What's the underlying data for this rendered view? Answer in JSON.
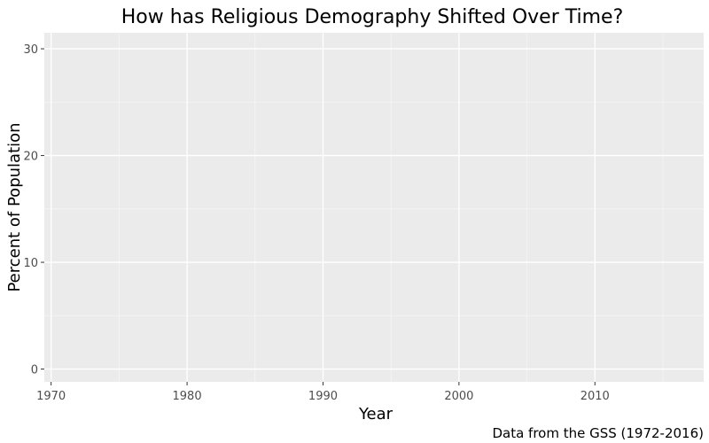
{
  "chart_data": {
    "type": "line",
    "title": "How has Religious Demography Shifted Over Time?",
    "xlabel": "Year",
    "ylabel": "Percent of Population",
    "caption": "Data from the GSS (1972-2016)",
    "xlim": [
      1969.5,
      2018
    ],
    "ylim": [
      -1.2,
      31.5
    ],
    "x_ticks": [
      1970,
      1980,
      1990,
      2000,
      2010
    ],
    "x_minor_ticks": [
      1975,
      1985,
      1995,
      2005,
      2015
    ],
    "y_ticks": [
      0,
      10,
      20,
      30
    ],
    "y_minor_ticks": [
      5,
      15,
      25
    ],
    "grid": true,
    "legend": "none",
    "series": [],
    "colors": {
      "panel_background": "#ebebeb",
      "grid_major": "#ffffff",
      "grid_minor": "#f5f5f5",
      "tick_label": "#4d4d4d",
      "text": "#000000"
    }
  }
}
